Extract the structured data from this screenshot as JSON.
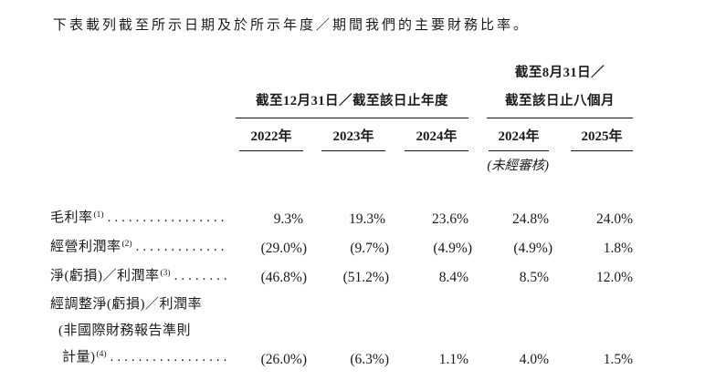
{
  "intro": "下表載列截至所示日期及於所示年度／期間我們的主要財務比率。",
  "table": {
    "group_headers": {
      "annual": "截至12月31日／截至該日止年度",
      "interim_line1": "截至8月31日／",
      "interim_line2": "截至該日止八個月"
    },
    "year_columns": [
      "2022年",
      "2023年",
      "2024年",
      "2024年",
      "2025年"
    ],
    "unaudited_note": "(未經審核)",
    "rows": [
      {
        "label": "毛利率",
        "footnote": "(1)",
        "values": [
          "9.3%",
          "19.3%",
          "23.6%",
          "24.8%",
          "24.0%"
        ]
      },
      {
        "label": "經營利潤率",
        "footnote": "(2)",
        "values": [
          "(29.0%)",
          "(9.7%)",
          "(4.9%)",
          "(4.9%)",
          "1.8%"
        ]
      },
      {
        "label": "淨(虧損)／利潤率",
        "footnote": "(3)",
        "values": [
          "(46.8%)",
          "(51.2%)",
          "8.4%",
          "8.5%",
          "12.0%"
        ]
      },
      {
        "label_lines": [
          "經調整淨(虧損)／利潤率",
          "(非國際財務報告準則",
          "計量)"
        ],
        "footnote": "(4)",
        "values": [
          "(26.0%)",
          "(6.3%)",
          "1.1%",
          "4.0%",
          "1.5%"
        ]
      }
    ]
  }
}
